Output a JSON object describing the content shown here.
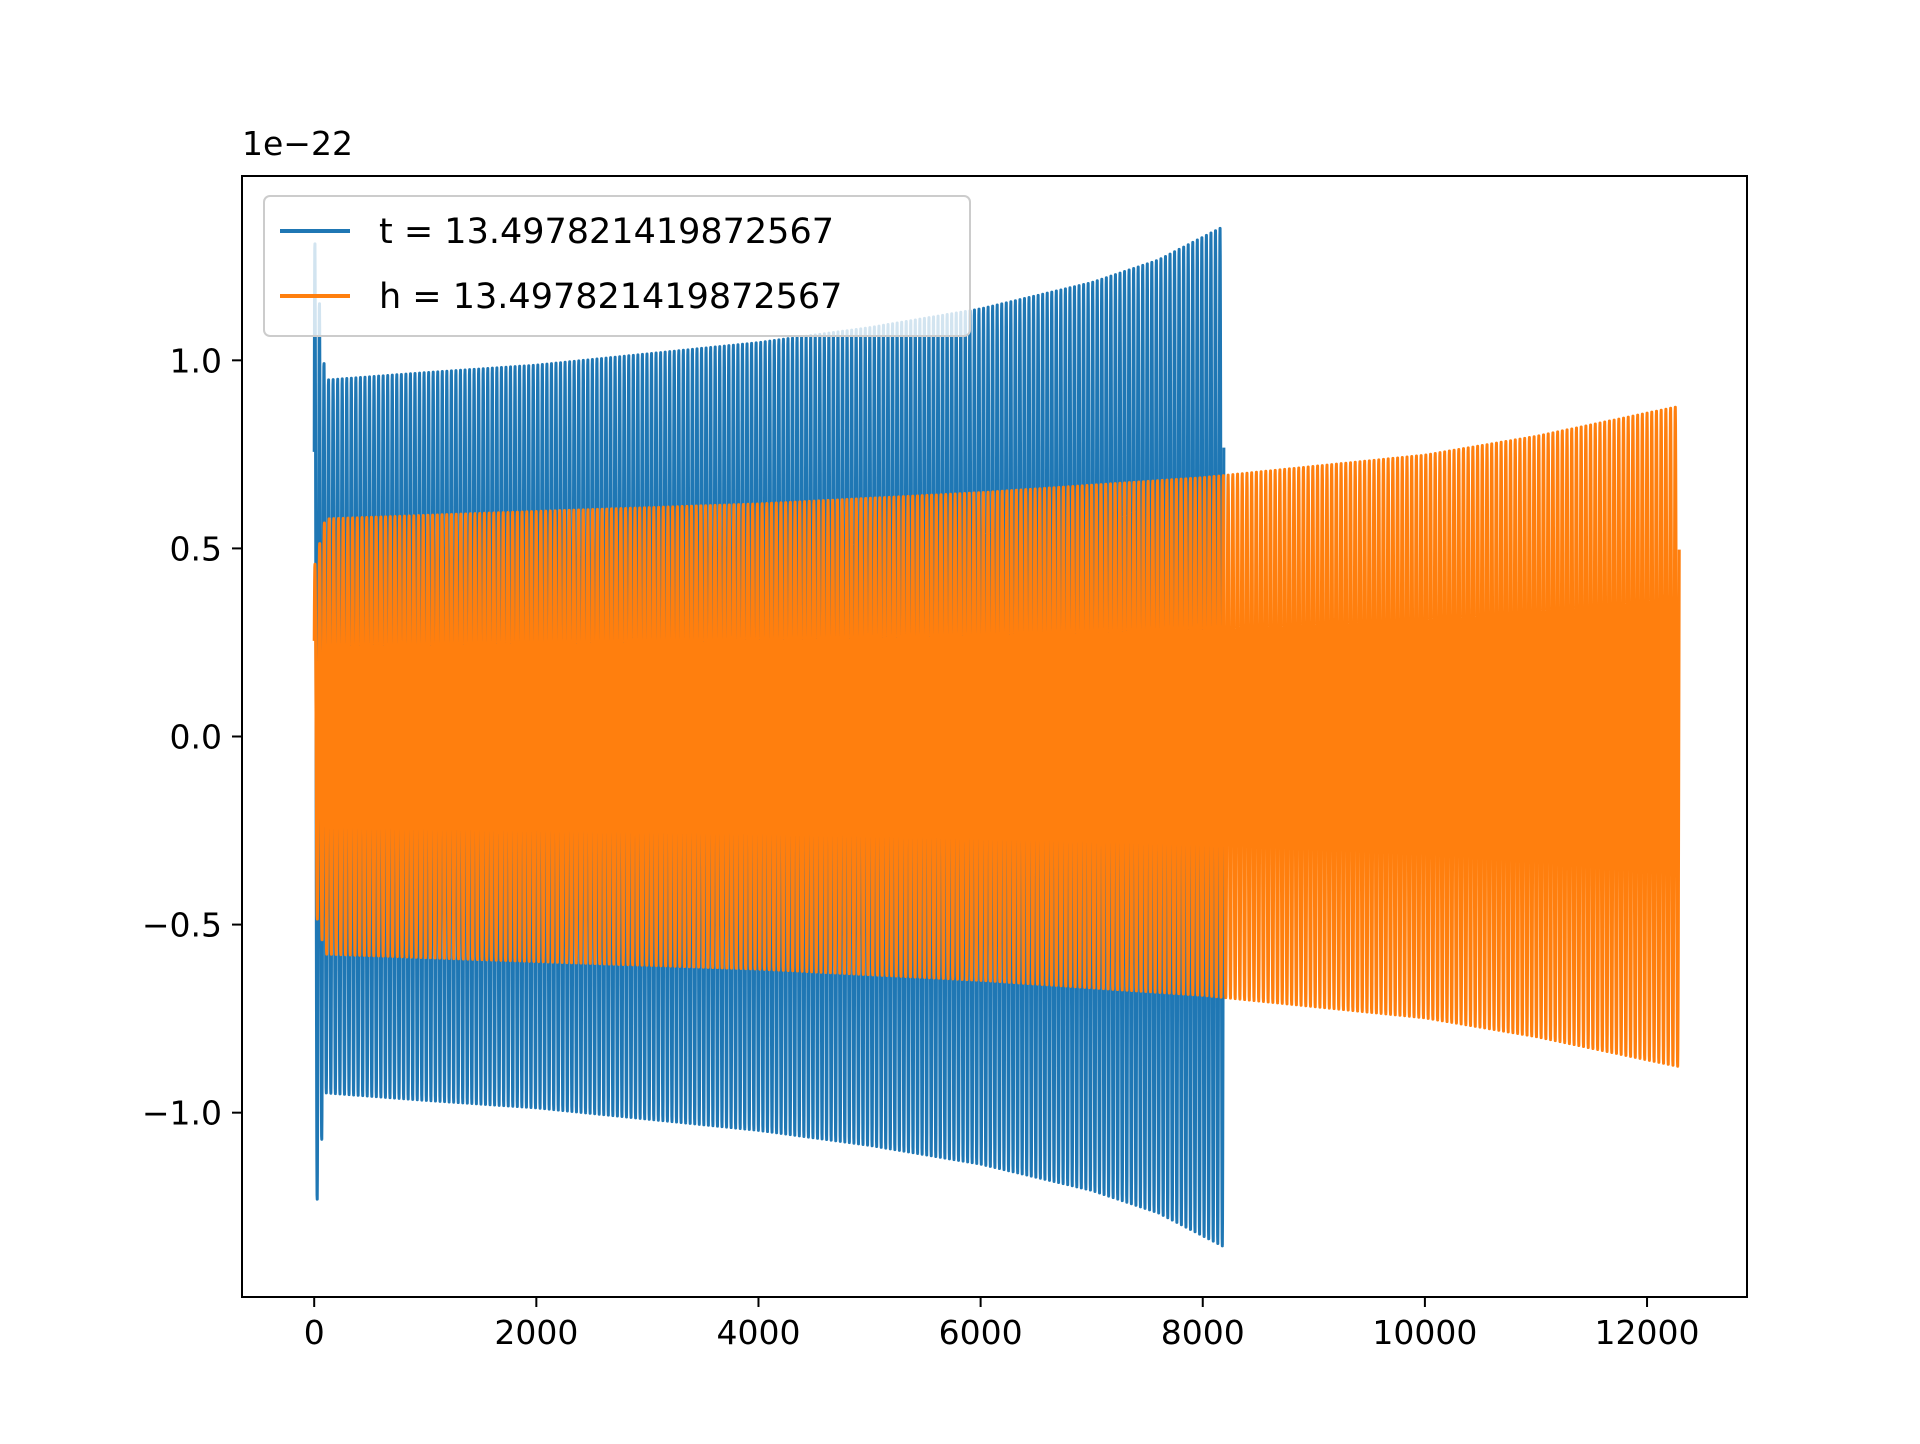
{
  "chart_data": {
    "type": "line",
    "title": "",
    "xlabel": "",
    "ylabel": "",
    "y_offset_label": "1e−22",
    "y_scale_factor": 1e-22,
    "xlim": [
      -650,
      12900
    ],
    "ylim": [
      -1.49,
      1.49
    ],
    "x_ticks": [
      0,
      2000,
      4000,
      6000,
      8000,
      10000,
      12000
    ],
    "x_tick_labels": [
      "0",
      "2000",
      "4000",
      "6000",
      "8000",
      "10000",
      "12000"
    ],
    "y_ticks": [
      -1.0,
      -0.5,
      0.0,
      0.5,
      1.0
    ],
    "y_tick_labels": [
      "−1.0",
      "−0.5",
      "0.0",
      "0.5",
      "1.0"
    ],
    "grid": false,
    "legend_position": "upper-left",
    "series": [
      {
        "name": "t = 13.497821419872567",
        "color": "#1f77b4",
        "x_range": [
          0,
          8190
        ],
        "cycles": 200,
        "envelope": [
          {
            "x": 0,
            "amplitude": 1.34
          },
          {
            "x": 100,
            "amplitude": 0.95
          },
          {
            "x": 1000,
            "amplitude": 0.97
          },
          {
            "x": 2000,
            "amplitude": 0.99
          },
          {
            "x": 3000,
            "amplitude": 1.02
          },
          {
            "x": 4000,
            "amplitude": 1.05
          },
          {
            "x": 5000,
            "amplitude": 1.09
          },
          {
            "x": 6000,
            "amplitude": 1.14
          },
          {
            "x": 7000,
            "amplitude": 1.21
          },
          {
            "x": 7600,
            "amplitude": 1.27
          },
          {
            "x": 8190,
            "amplitude": 1.36
          }
        ]
      },
      {
        "name": "h = 13.497821419872567",
        "color": "#ff7f0e",
        "x_range": [
          0,
          12290
        ],
        "cycles": 290,
        "envelope": [
          {
            "x": 0,
            "amplitude": 0.45
          },
          {
            "x": 100,
            "amplitude": 0.58
          },
          {
            "x": 2000,
            "amplitude": 0.6
          },
          {
            "x": 4000,
            "amplitude": 0.62
          },
          {
            "x": 6000,
            "amplitude": 0.65
          },
          {
            "x": 8000,
            "amplitude": 0.69
          },
          {
            "x": 9000,
            "amplitude": 0.72
          },
          {
            "x": 10000,
            "amplitude": 0.75
          },
          {
            "x": 11000,
            "amplitude": 0.8
          },
          {
            "x": 12290,
            "amplitude": 0.88
          }
        ]
      }
    ]
  }
}
